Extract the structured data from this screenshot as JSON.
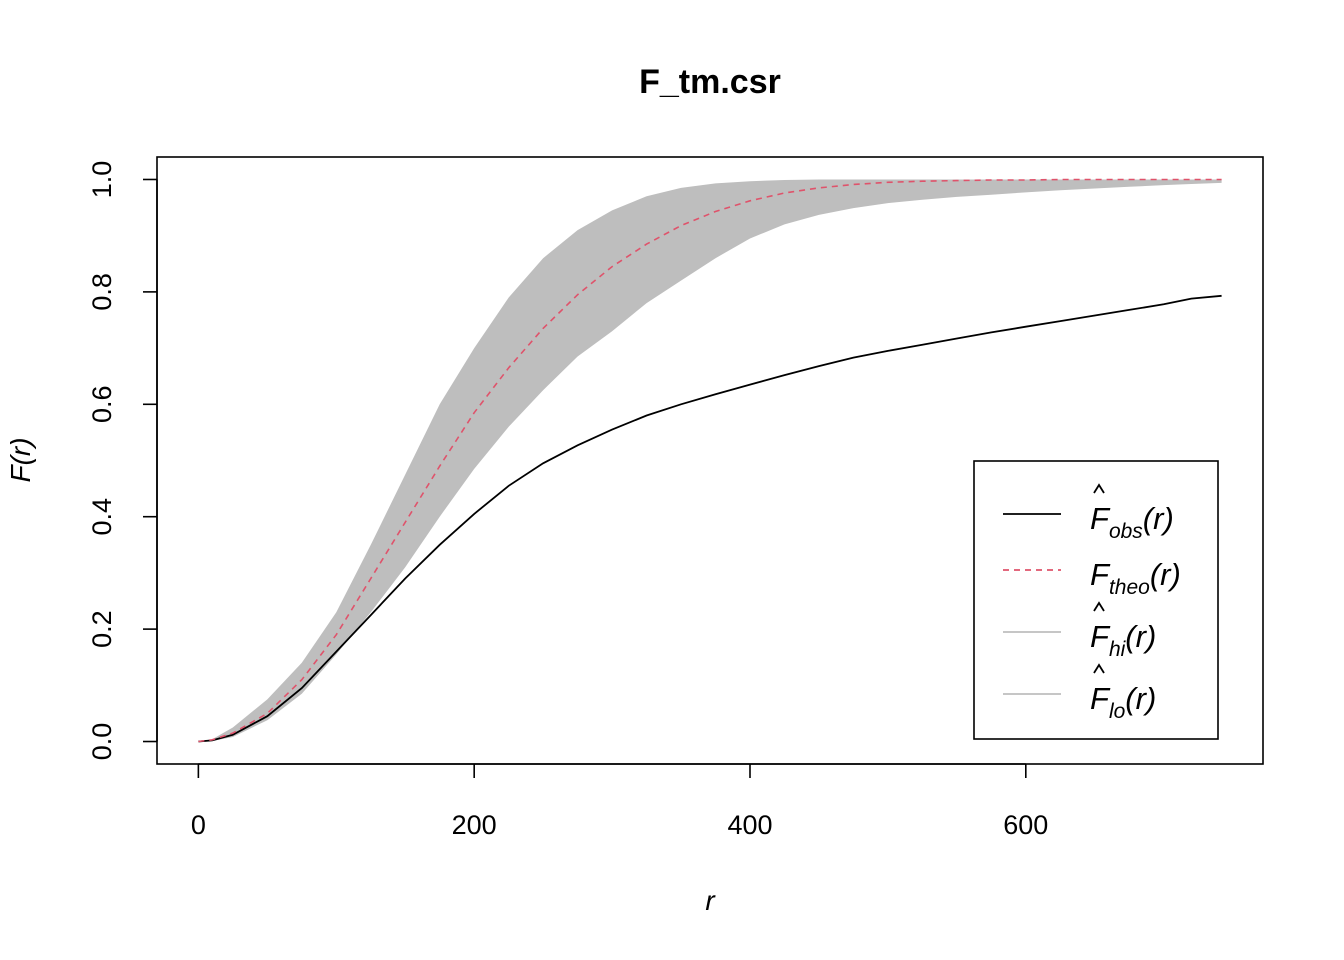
{
  "chart_data": {
    "type": "line",
    "title": "F_tm.csr",
    "xlabel": "r",
    "ylabel": "F(r)",
    "xlim": [
      -30,
      772
    ],
    "ylim": [
      -0.04,
      1.04
    ],
    "x_ticks": [
      "0",
      "200",
      "400",
      "600"
    ],
    "y_ticks": [
      "0.0",
      "0.2",
      "0.4",
      "0.6",
      "0.8",
      "1.0"
    ],
    "legend_position": "bottom-right",
    "grid": false,
    "colors": {
      "obs": "#000000",
      "theo": "#DF536B",
      "envelope": "#BEBEBE",
      "frame": "#000000"
    },
    "legend": [
      {
        "key": "obs",
        "hat": true,
        "main": "F",
        "sub": "obs",
        "arg": "(r)",
        "style": "solid",
        "color": "#000000"
      },
      {
        "key": "theo",
        "hat": false,
        "main": "F",
        "sub": "theo",
        "arg": "(r)",
        "style": "dashed",
        "color": "#DF536B"
      },
      {
        "key": "hi",
        "hat": true,
        "main": "F",
        "sub": "hi",
        "arg": "(r)",
        "style": "solid",
        "color": "#BEBEBE"
      },
      {
        "key": "lo",
        "hat": true,
        "main": "F",
        "sub": "lo",
        "arg": "(r)",
        "style": "solid",
        "color": "#BEBEBE"
      }
    ],
    "series": [
      {
        "name": "obs",
        "x": [
          0,
          10,
          25,
          50,
          75,
          100,
          125,
          150,
          175,
          200,
          225,
          250,
          275,
          300,
          325,
          350,
          375,
          400,
          425,
          450,
          475,
          500,
          525,
          550,
          575,
          600,
          625,
          650,
          675,
          700,
          720,
          742
        ],
        "values": [
          0.0,
          0.002,
          0.012,
          0.045,
          0.095,
          0.16,
          0.225,
          0.29,
          0.35,
          0.405,
          0.455,
          0.495,
          0.527,
          0.555,
          0.58,
          0.6,
          0.618,
          0.635,
          0.652,
          0.668,
          0.683,
          0.695,
          0.706,
          0.717,
          0.728,
          0.738,
          0.748,
          0.758,
          0.768,
          0.778,
          0.788,
          0.793
        ]
      },
      {
        "name": "theo",
        "x": [
          0,
          10,
          25,
          50,
          75,
          100,
          125,
          150,
          175,
          200,
          225,
          250,
          275,
          300,
          325,
          350,
          375,
          400,
          425,
          450,
          475,
          500,
          525,
          550,
          575,
          600,
          625,
          650,
          675,
          700,
          720,
          742
        ],
        "values": [
          0.0,
          0.003,
          0.015,
          0.05,
          0.11,
          0.19,
          0.29,
          0.39,
          0.49,
          0.585,
          0.665,
          0.735,
          0.795,
          0.845,
          0.885,
          0.918,
          0.943,
          0.962,
          0.976,
          0.985,
          0.991,
          0.995,
          0.997,
          0.998,
          0.999,
          0.999,
          1.0,
          1.0,
          1.0,
          1.0,
          1.0,
          1.0
        ]
      },
      {
        "name": "hi",
        "x": [
          0,
          10,
          25,
          50,
          75,
          100,
          125,
          150,
          175,
          200,
          225,
          250,
          275,
          300,
          325,
          350,
          375,
          400,
          425,
          450,
          475,
          500,
          525,
          550,
          575,
          600,
          625,
          650,
          675,
          700,
          720,
          742
        ],
        "values": [
          0.0,
          0.004,
          0.025,
          0.075,
          0.14,
          0.23,
          0.35,
          0.475,
          0.6,
          0.7,
          0.79,
          0.86,
          0.91,
          0.945,
          0.97,
          0.985,
          0.993,
          0.997,
          0.999,
          1.0,
          1.0,
          1.0,
          1.0,
          1.0,
          1.0,
          1.0,
          1.0,
          1.0,
          1.0,
          1.0,
          1.0,
          1.0
        ]
      },
      {
        "name": "lo",
        "x": [
          0,
          10,
          25,
          50,
          75,
          100,
          125,
          150,
          175,
          200,
          225,
          250,
          275,
          300,
          325,
          350,
          375,
          400,
          425,
          450,
          475,
          500,
          525,
          550,
          575,
          600,
          625,
          650,
          675,
          700,
          720,
          742
        ],
        "values": [
          0.0,
          0.001,
          0.008,
          0.038,
          0.085,
          0.155,
          0.23,
          0.31,
          0.4,
          0.485,
          0.56,
          0.625,
          0.685,
          0.73,
          0.78,
          0.82,
          0.86,
          0.895,
          0.92,
          0.937,
          0.949,
          0.958,
          0.964,
          0.969,
          0.973,
          0.977,
          0.981,
          0.984,
          0.987,
          0.99,
          0.992,
          0.994
        ]
      }
    ]
  }
}
